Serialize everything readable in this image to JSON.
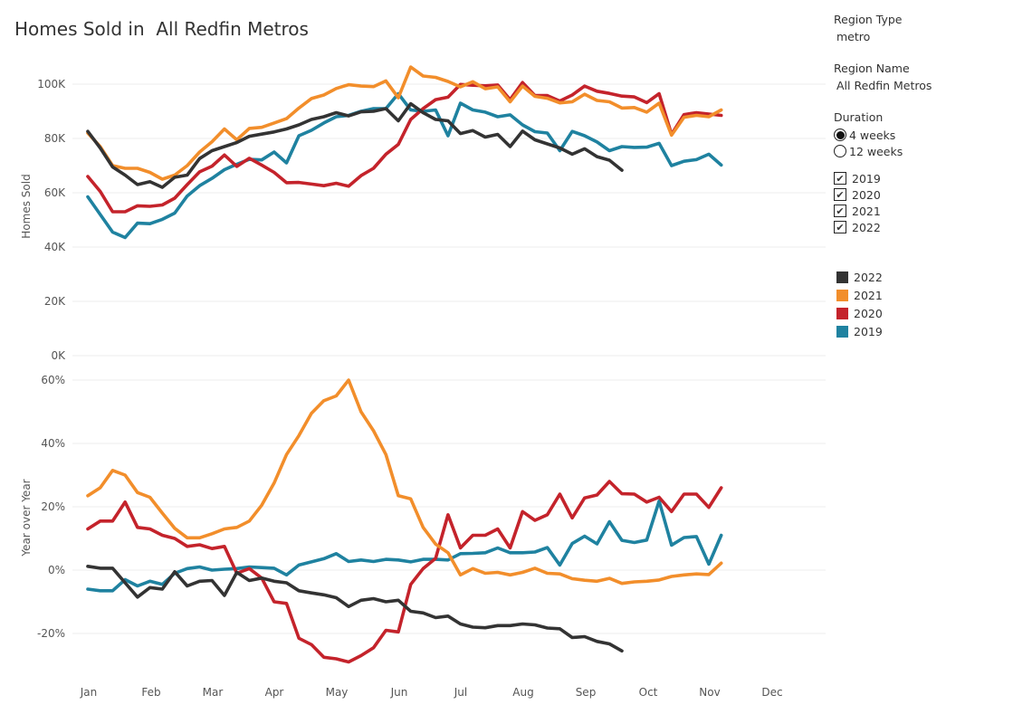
{
  "page": {
    "title": "Homes Sold in  All Redfin Metros"
  },
  "filters": {
    "region_type_label": "Region Type",
    "region_type_value": "metro",
    "region_name_label": "Region Name",
    "region_name_value": "All Redfin Metros",
    "duration_label": "Duration",
    "duration_options": [
      {
        "label": "4 weeks",
        "selected": true
      },
      {
        "label": "12 weeks",
        "selected": false
      }
    ],
    "years": [
      {
        "label": "2019",
        "checked": true
      },
      {
        "label": "2020",
        "checked": true
      },
      {
        "label": "2021",
        "checked": true
      },
      {
        "label": "2022",
        "checked": true
      }
    ],
    "check_glyph": "✔"
  },
  "legend": [
    {
      "label": "2022",
      "color": "#333333"
    },
    {
      "label": "2021",
      "color": "#f28e2b"
    },
    {
      "label": "2020",
      "color": "#c4232b"
    },
    {
      "label": "2019",
      "color": "#1f82a0"
    }
  ],
  "chart_data": [
    {
      "type": "line",
      "title": "",
      "ylabel": "Homes Sold",
      "xlabel": "",
      "x_unit": "week of year",
      "ylim": [
        0,
        105000
      ],
      "y_ticks": [
        {
          "value": 0,
          "label": "0K"
        },
        {
          "value": 20000,
          "label": "20K"
        },
        {
          "value": 40000,
          "label": "40K"
        },
        {
          "value": 60000,
          "label": "60K"
        },
        {
          "value": 80000,
          "label": "80K"
        },
        {
          "value": 100000,
          "label": "100K"
        }
      ],
      "grid": true,
      "series": [
        {
          "name": "2019",
          "color": "#1f82a0",
          "values": [
            58500,
            52000,
            45500,
            43500,
            48800,
            48600,
            50200,
            52500,
            58800,
            62600,
            65300,
            68500,
            70500,
            72300,
            72100,
            75000,
            71000,
            81000,
            83000,
            85700,
            88000,
            88500,
            90000,
            91000,
            91000,
            96500,
            90500,
            90000,
            90500,
            81000,
            93000,
            90500,
            89700,
            88000,
            88700,
            85000,
            82500,
            82000,
            75500,
            82600,
            81000,
            78700,
            75500,
            77000,
            76700,
            76800,
            78200,
            70000,
            71600,
            72200,
            74200,
            70200
          ]
        },
        {
          "name": "2020",
          "color": "#c4232b",
          "values": [
            66000,
            60500,
            53000,
            53000,
            55200,
            55000,
            55500,
            58000,
            63000,
            67700,
            69800,
            73900,
            69700,
            72700,
            70200,
            67500,
            63700,
            63800,
            63200,
            62600,
            63500,
            62400,
            66300,
            69000,
            74200,
            77800,
            87000,
            91000,
            94300,
            95200,
            99900,
            99600,
            99400,
            99700,
            94300,
            100600,
            95800,
            95800,
            93800,
            96000,
            99300,
            97400,
            96600,
            95600,
            95300,
            93200,
            96500,
            81500,
            88800,
            89500,
            89000,
            88500
          ]
        },
        {
          "name": "2021",
          "color": "#f28e2b",
          "values": [
            82000,
            77000,
            70000,
            69000,
            69000,
            67500,
            65000,
            66500,
            70000,
            75000,
            78800,
            83500,
            79500,
            83700,
            84100,
            85700,
            87300,
            91200,
            94700,
            96000,
            98400,
            99800,
            99300,
            99100,
            101200,
            95000,
            106300,
            103000,
            102500,
            101000,
            99000,
            100900,
            98300,
            99000,
            93500,
            99300,
            95500,
            94800,
            93100,
            93500,
            96300,
            94000,
            93500,
            91200,
            91400,
            89700,
            93000,
            81200,
            87800,
            88500,
            88000,
            90500
          ]
        },
        {
          "name": "2022",
          "color": "#333333",
          "values": [
            82600,
            76500,
            69500,
            66500,
            63000,
            64100,
            62000,
            65700,
            66500,
            72600,
            75500,
            77000,
            78500,
            80800,
            81600,
            82400,
            83500,
            85000,
            87000,
            88000,
            89500,
            88300,
            89800,
            90000,
            91000,
            86500,
            92800,
            89500,
            87000,
            86500,
            81800,
            82900,
            80500,
            81500,
            77000,
            82700,
            79500,
            78000,
            76500,
            74200,
            76200,
            73300,
            72000,
            68300
          ]
        }
      ]
    },
    {
      "type": "line",
      "title": "",
      "ylabel": "Year over Year",
      "xlabel": "",
      "x_unit": "week of year",
      "ylim": [
        -30,
        62
      ],
      "y_ticks": [
        {
          "value": -20,
          "label": "-20%"
        },
        {
          "value": 0,
          "label": "0%"
        },
        {
          "value": 20,
          "label": "20%"
        },
        {
          "value": 40,
          "label": "40%"
        },
        {
          "value": 60,
          "label": "60%"
        }
      ],
      "x_ticks": [
        "Jan",
        "Feb",
        "Mar",
        "Apr",
        "May",
        "Jun",
        "Jul",
        "Aug",
        "Sep",
        "Oct",
        "Nov",
        "Dec"
      ],
      "grid": true,
      "series": [
        {
          "name": "2019",
          "color": "#1f82a0",
          "values": [
            -6,
            -6.5,
            -6.5,
            -3,
            -5,
            -3.5,
            -4.5,
            -1,
            0.5,
            1,
            0,
            0.3,
            0.5,
            1,
            0.8,
            0.6,
            -1.5,
            1.6,
            2.6,
            3.6,
            5.2,
            2.7,
            3.2,
            2.7,
            3.4,
            3.2,
            2.6,
            3.4,
            3.4,
            3.2,
            5.2,
            5.3,
            5.5,
            7,
            5.5,
            5.5,
            5.7,
            7.1,
            1.6,
            8.4,
            10.7,
            8.3,
            15.3,
            9.4,
            8.7,
            9.5,
            21.8,
            7.9,
            10.3,
            10.6,
            1.9,
            11
          ]
        },
        {
          "name": "2020",
          "color": "#c4232b",
          "values": [
            13,
            15.5,
            15.5,
            21.5,
            13.5,
            13,
            11,
            10,
            7.5,
            8,
            6.8,
            7.5,
            -1,
            0.5,
            -2.5,
            -10,
            -10.5,
            -21.5,
            -23.5,
            -27.5,
            -28,
            -29,
            -27,
            -24.5,
            -19,
            -19.5,
            -4.5,
            0.5,
            3.7,
            17.5,
            7,
            11,
            11,
            13,
            7,
            18.5,
            15.7,
            17.5,
            24,
            16.5,
            22.8,
            23.7,
            28,
            24.1,
            24,
            21.5,
            23,
            18.5,
            24,
            24,
            19.8,
            26
          ]
        },
        {
          "name": "2021",
          "color": "#f28e2b",
          "values": [
            23.5,
            26,
            31.5,
            30,
            24.5,
            23,
            18,
            13.2,
            10.2,
            10.2,
            11.5,
            13,
            13.5,
            15.5,
            20.5,
            27.5,
            36.5,
            42.5,
            49.5,
            53.5,
            55,
            60,
            50,
            44,
            36.5,
            23.5,
            22.5,
            13.5,
            8.2,
            5.5,
            -1.5,
            0.5,
            -1,
            -0.7,
            -1.5,
            -0.7,
            0.6,
            -1,
            -1.2,
            -2.7,
            -3.2,
            -3.5,
            -2.6,
            -4.2,
            -3.7,
            -3.5,
            -3.1,
            -2,
            -1.5,
            -1.2,
            -1.4,
            2.2
          ]
        },
        {
          "name": "2022",
          "color": "#333333",
          "values": [
            1.2,
            0.6,
            0.6,
            -4,
            -8.5,
            -5.5,
            -6,
            -0.5,
            -5,
            -3.5,
            -3.3,
            -8,
            -0.7,
            -3.3,
            -2.5,
            -3.5,
            -4,
            -6.5,
            -7.2,
            -7.8,
            -8.7,
            -11.5,
            -9.5,
            -9,
            -10,
            -9.5,
            -13,
            -13.5,
            -15,
            -14.5,
            -17,
            -18,
            -18.2,
            -17.5,
            -17.5,
            -17,
            -17.3,
            -18.3,
            -18.5,
            -21.3,
            -21,
            -22.5,
            -23.3,
            -25.5
          ]
        }
      ]
    }
  ]
}
